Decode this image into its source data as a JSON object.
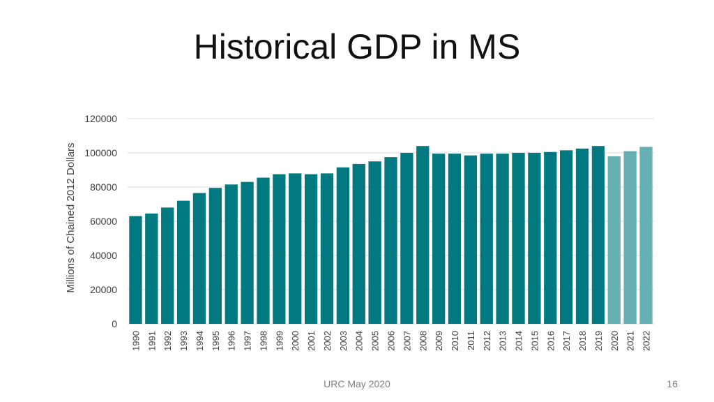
{
  "slide": {
    "title": "Historical GDP in MS",
    "footer": "URC May 2020",
    "page_number": "16"
  },
  "chart_data": {
    "type": "bar",
    "title": "",
    "xlabel": "",
    "ylabel": "Millions of Chained 2012 Dollars",
    "ylim": [
      0,
      120000
    ],
    "yticks": [
      0,
      20000,
      40000,
      60000,
      80000,
      100000,
      120000
    ],
    "grid": true,
    "categories": [
      "1990",
      "1991",
      "1992",
      "1993",
      "1994",
      "1995",
      "1996",
      "1997",
      "1998",
      "1999",
      "2000",
      "2001",
      "2002",
      "2003",
      "2004",
      "2005",
      "2006",
      "2007",
      "2008",
      "2009",
      "2010",
      "2011",
      "2012",
      "2013",
      "2014",
      "2015",
      "2016",
      "2017",
      "2018",
      "2019",
      "2020",
      "2021",
      "2022"
    ],
    "values": [
      63000,
      64500,
      68000,
      72000,
      76500,
      79500,
      81500,
      83000,
      85500,
      87500,
      88000,
      87500,
      88000,
      91500,
      93500,
      95000,
      97500,
      100000,
      104000,
      99500,
      99500,
      98500,
      99500,
      99500,
      100000,
      100000,
      100500,
      101500,
      102500,
      104000,
      98000,
      101000,
      103500
    ],
    "colors": {
      "historical": "#007a80",
      "forecast": "#66b0b4",
      "grid": "#d9d9d9",
      "axis": "#d9d9d9",
      "tick_text": "#404040"
    },
    "forecast_categories": [
      "2020",
      "2021",
      "2022"
    ]
  }
}
